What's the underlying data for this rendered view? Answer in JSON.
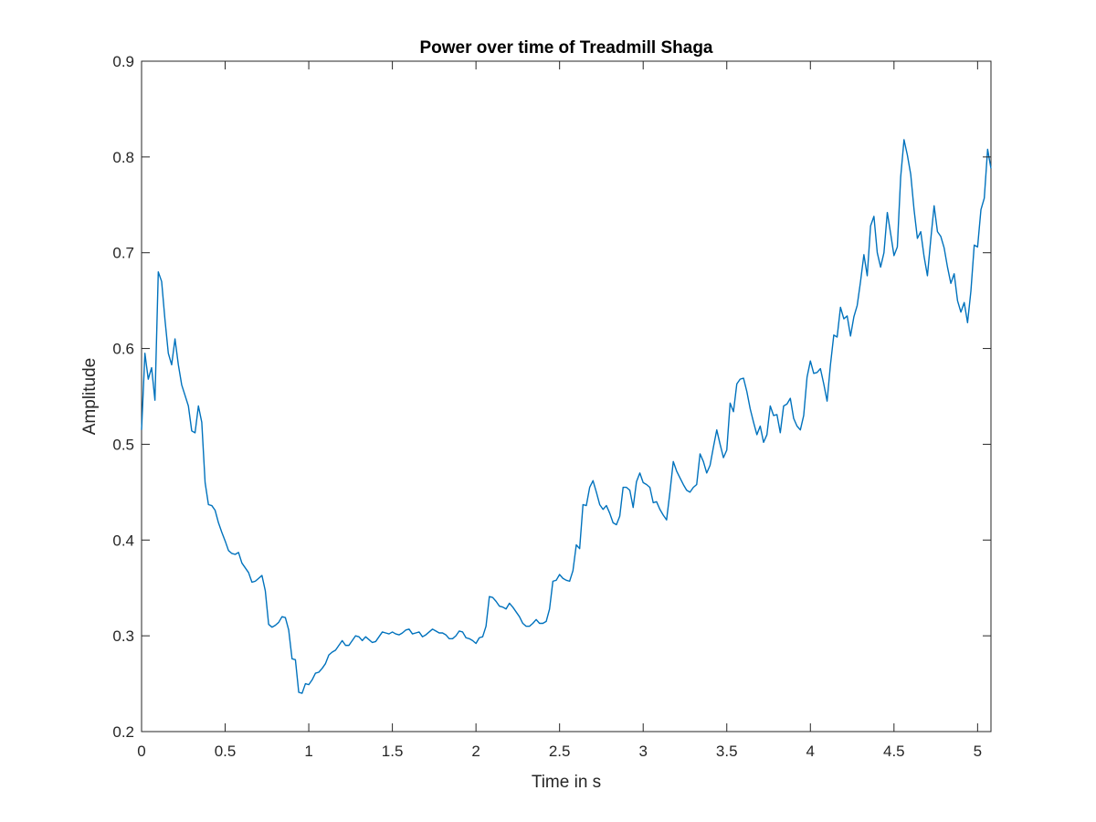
{
  "chart_data": {
    "type": "line",
    "title": "Power over time of Treadmill Shaga",
    "xlabel": "Time in s",
    "ylabel": "Amplitude",
    "xlim": [
      0,
      5.08
    ],
    "ylim": [
      0.2,
      0.9
    ],
    "xticks": [
      "0",
      "0.5",
      "1",
      "1.5",
      "2",
      "2.5",
      "3",
      "3.5",
      "4",
      "4.5",
      "5"
    ],
    "yticks": [
      "0.2",
      "0.3",
      "0.4",
      "0.5",
      "0.6",
      "0.7",
      "0.8",
      "0.9"
    ],
    "grid": false,
    "colors": {
      "line": "#0072BD",
      "axis": "#262626"
    },
    "series": [
      {
        "x": [
          0.0,
          0.02,
          0.04,
          0.06,
          0.08,
          0.1,
          0.12,
          0.14,
          0.16,
          0.18,
          0.2,
          0.22,
          0.24,
          0.26,
          0.28,
          0.3,
          0.32,
          0.34,
          0.36,
          0.38,
          0.4,
          0.42,
          0.44,
          0.46,
          0.48,
          0.5,
          0.52,
          0.54,
          0.56,
          0.58,
          0.6,
          0.62,
          0.64,
          0.66,
          0.68,
          0.7,
          0.72,
          0.74,
          0.76,
          0.78,
          0.8,
          0.82,
          0.84,
          0.86,
          0.88,
          0.9,
          0.92,
          0.94,
          0.96,
          0.98,
          1.0,
          1.02,
          1.04,
          1.06,
          1.08,
          1.1,
          1.12,
          1.14,
          1.16,
          1.18,
          1.2,
          1.22,
          1.24,
          1.26,
          1.28,
          1.3,
          1.32,
          1.34,
          1.36,
          1.38,
          1.4,
          1.42,
          1.44,
          1.46,
          1.48,
          1.5,
          1.52,
          1.54,
          1.56,
          1.58,
          1.6,
          1.62,
          1.64,
          1.66,
          1.68,
          1.7,
          1.72,
          1.74,
          1.76,
          1.78,
          1.8,
          1.82,
          1.84,
          1.86,
          1.88,
          1.9,
          1.92,
          1.94,
          1.96,
          1.98,
          2.0,
          2.02,
          2.04,
          2.06,
          2.08,
          2.1,
          2.12,
          2.14,
          2.16,
          2.18,
          2.2,
          2.22,
          2.24,
          2.26,
          2.28,
          2.3,
          2.32,
          2.34,
          2.36,
          2.38,
          2.4,
          2.42,
          2.44,
          2.46,
          2.48,
          2.5,
          2.52,
          2.54,
          2.56,
          2.58,
          2.6,
          2.62,
          2.64,
          2.66,
          2.68,
          2.7,
          2.72,
          2.74,
          2.76,
          2.78,
          2.8,
          2.82,
          2.84,
          2.86,
          2.88,
          2.9,
          2.92,
          2.94,
          2.96,
          2.98,
          3.0,
          3.02,
          3.04,
          3.06,
          3.08,
          3.1,
          3.12,
          3.14,
          3.16,
          3.18,
          3.2,
          3.22,
          3.24,
          3.26,
          3.28,
          3.3,
          3.32,
          3.34,
          3.36,
          3.38,
          3.4,
          3.42,
          3.44,
          3.46,
          3.48,
          3.5,
          3.52,
          3.54,
          3.56,
          3.58,
          3.6,
          3.62,
          3.64,
          3.66,
          3.68,
          3.7,
          3.72,
          3.74,
          3.76,
          3.78,
          3.8,
          3.82,
          3.84,
          3.86,
          3.88,
          3.9,
          3.92,
          3.94,
          3.96,
          3.98,
          4.0,
          4.02,
          4.04,
          4.06,
          4.08,
          4.1,
          4.12,
          4.14,
          4.16,
          4.18,
          4.2,
          4.22,
          4.24,
          4.26,
          4.28,
          4.3,
          4.32,
          4.34,
          4.36,
          4.38,
          4.4,
          4.42,
          4.44,
          4.46,
          4.48,
          4.5,
          4.52,
          4.54,
          4.56,
          4.58,
          4.6,
          4.62,
          4.64,
          4.66,
          4.68,
          4.7,
          4.72,
          4.74,
          4.76,
          4.78,
          4.8,
          4.82,
          4.84,
          4.86,
          4.88,
          4.9,
          4.92,
          4.94,
          4.96,
          4.98,
          5.0,
          5.02,
          5.04,
          5.06,
          5.08
        ],
        "y": [
          0.515,
          0.595,
          0.568,
          0.58,
          0.546,
          0.68,
          0.67,
          0.63,
          0.595,
          0.583,
          0.61,
          0.583,
          0.562,
          0.551,
          0.54,
          0.514,
          0.512,
          0.54,
          0.523,
          0.46,
          0.437,
          0.436,
          0.431,
          0.418,
          0.408,
          0.399,
          0.389,
          0.386,
          0.385,
          0.387,
          0.376,
          0.371,
          0.366,
          0.356,
          0.357,
          0.36,
          0.363,
          0.347,
          0.312,
          0.309,
          0.311,
          0.314,
          0.32,
          0.319,
          0.306,
          0.276,
          0.275,
          0.241,
          0.24,
          0.25,
          0.249,
          0.254,
          0.261,
          0.262,
          0.266,
          0.271,
          0.28,
          0.283,
          0.285,
          0.29,
          0.295,
          0.29,
          0.29,
          0.295,
          0.3,
          0.299,
          0.295,
          0.299,
          0.296,
          0.293,
          0.294,
          0.299,
          0.304,
          0.303,
          0.302,
          0.304,
          0.302,
          0.301,
          0.303,
          0.306,
          0.307,
          0.302,
          0.303,
          0.304,
          0.299,
          0.301,
          0.304,
          0.307,
          0.305,
          0.303,
          0.303,
          0.301,
          0.297,
          0.297,
          0.3,
          0.305,
          0.304,
          0.298,
          0.297,
          0.295,
          0.292,
          0.298,
          0.299,
          0.31,
          0.341,
          0.34,
          0.336,
          0.331,
          0.33,
          0.328,
          0.334,
          0.33,
          0.325,
          0.32,
          0.313,
          0.31,
          0.31,
          0.313,
          0.317,
          0.313,
          0.313,
          0.315,
          0.328,
          0.357,
          0.358,
          0.364,
          0.36,
          0.358,
          0.357,
          0.368,
          0.395,
          0.391,
          0.437,
          0.436,
          0.455,
          0.462,
          0.45,
          0.437,
          0.432,
          0.436,
          0.428,
          0.418,
          0.416,
          0.425,
          0.455,
          0.455,
          0.452,
          0.434,
          0.461,
          0.47,
          0.46,
          0.458,
          0.455,
          0.439,
          0.44,
          0.432,
          0.426,
          0.421,
          0.45,
          0.482,
          0.472,
          0.465,
          0.458,
          0.452,
          0.45,
          0.455,
          0.458,
          0.49,
          0.482,
          0.47,
          0.478,
          0.497,
          0.515,
          0.5,
          0.486,
          0.494,
          0.543,
          0.534,
          0.563,
          0.568,
          0.569,
          0.555,
          0.537,
          0.523,
          0.51,
          0.519,
          0.502,
          0.51,
          0.54,
          0.53,
          0.531,
          0.512,
          0.54,
          0.542,
          0.548,
          0.527,
          0.519,
          0.515,
          0.53,
          0.57,
          0.587,
          0.574,
          0.575,
          0.579,
          0.563,
          0.545,
          0.583,
          0.614,
          0.612,
          0.643,
          0.631,
          0.634,
          0.613,
          0.633,
          0.645,
          0.67,
          0.698,
          0.676,
          0.728,
          0.738,
          0.7,
          0.685,
          0.7,
          0.742,
          0.72,
          0.697,
          0.706,
          0.779,
          0.818,
          0.802,
          0.782,
          0.745,
          0.715,
          0.722,
          0.696,
          0.676,
          0.714,
          0.749,
          0.722,
          0.717,
          0.705,
          0.685,
          0.668,
          0.678,
          0.65,
          0.638,
          0.648,
          0.627,
          0.66,
          0.708,
          0.706,
          0.745,
          0.757,
          0.808,
          0.788
        ]
      }
    ]
  }
}
